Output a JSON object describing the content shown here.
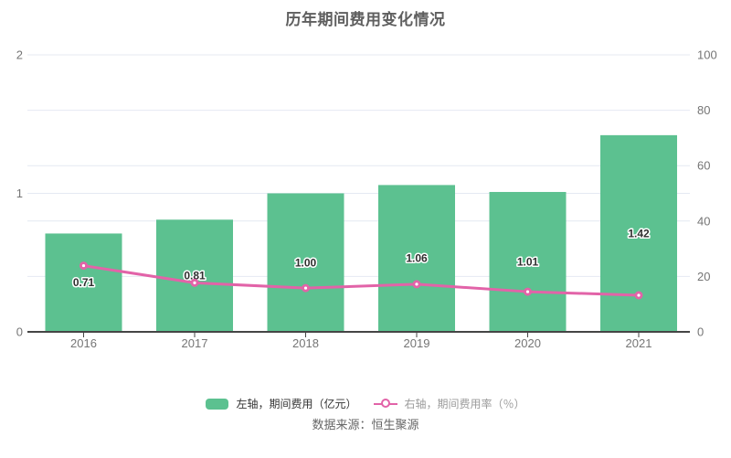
{
  "title": "历年期间费用变化情况",
  "source": "数据来源：恒生聚源",
  "legend": {
    "bar_label": "左轴，期间费用（亿元）",
    "line_label": "右轴，期间费用率（％）"
  },
  "colors": {
    "bar": "#5cc190",
    "line": "#e263a8",
    "point_core": "#ffffff",
    "grid": "#e4e9f2",
    "axis": "#454545",
    "tick_label": "#757575",
    "bar_value_label": "#2f2f2f",
    "title": "#5f5f5f",
    "legend_bar_text": "#333333",
    "legend_line_text": "#9b9b9b",
    "source_text": "#666666"
  },
  "chart_data": {
    "type": "bar",
    "title": "历年期间费用变化情况",
    "categories": [
      "2016",
      "2017",
      "2018",
      "2019",
      "2020",
      "2021"
    ],
    "series": [
      {
        "name": "左轴，期间费用（亿元）",
        "type": "bar",
        "axis": "left",
        "values": [
          0.71,
          0.81,
          1.0,
          1.06,
          1.01,
          1.42
        ],
        "value_labels": [
          "0.71",
          "0.81",
          "1.00",
          "1.06",
          "1.01",
          "1.42"
        ]
      },
      {
        "name": "右轴，期间费用率（％）",
        "type": "line",
        "axis": "right",
        "values": [
          23.9,
          17.7,
          15.8,
          17.2,
          14.5,
          13.2
        ]
      }
    ],
    "left_axis": {
      "label": "",
      "min": 0,
      "max": 2,
      "ticks": [
        0,
        1,
        2
      ]
    },
    "right_axis": {
      "label": "",
      "min": 0,
      "max": 100,
      "ticks": [
        0,
        20,
        40,
        60,
        80,
        100
      ]
    },
    "grid": true,
    "legend_position": "bottom"
  }
}
